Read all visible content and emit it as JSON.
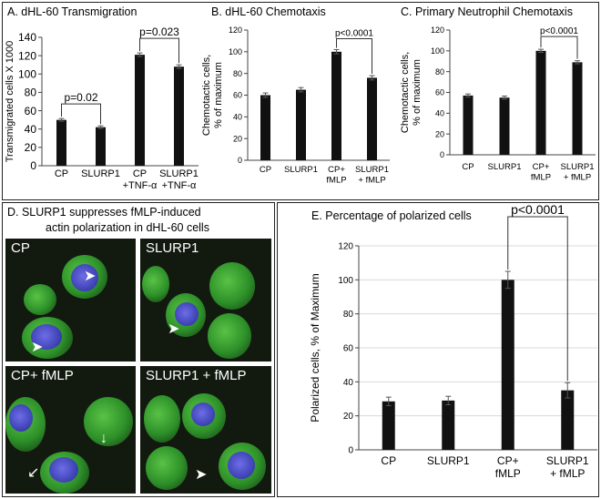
{
  "panel_a": {
    "title": "A. dHL-60 Transmigration",
    "chart_data": {
      "type": "bar",
      "ylabel": "Transmigrated cells X 1000",
      "ylim": [
        0,
        140
      ],
      "yticks": [
        "0",
        "20",
        "40",
        "60",
        "80",
        "100",
        "120",
        "140"
      ],
      "categories": [
        {
          "line1": "CP",
          "line2": ""
        },
        {
          "line1": "SLURP1",
          "line2": ""
        },
        {
          "line1": "CP",
          "line2": "+TNF-α"
        },
        {
          "line1": "SLURP1",
          "line2": "+TNF-α"
        }
      ],
      "values": [
        50,
        42,
        121,
        108
      ],
      "errors": [
        1.5,
        1.5,
        2,
        2
      ],
      "annotations": [
        {
          "from": 0,
          "to": 1,
          "text": "p=0.02"
        },
        {
          "from": 2,
          "to": 3,
          "text": "p=0.023"
        }
      ]
    }
  },
  "panel_b": {
    "title": "B.  dHL-60 Chemotaxis",
    "chart_data": {
      "type": "bar",
      "ylabel_line1": "Chemotactic  cells,",
      "ylabel_line2": "% of maximum",
      "ylim": [
        0,
        120
      ],
      "yticks": [
        "0",
        "20",
        "40",
        "60",
        "80",
        "100",
        "120"
      ],
      "categories": [
        {
          "line1": "CP",
          "line2": ""
        },
        {
          "line1": "SLURP1",
          "line2": ""
        },
        {
          "line1": "CP+",
          "line2": "fMLP"
        },
        {
          "line1": "SLURP1",
          "line2": "+ fMLP"
        }
      ],
      "values": [
        60,
        65,
        100,
        76
      ],
      "errors": [
        2,
        2,
        2,
        2
      ],
      "annotations": [
        {
          "from": 2,
          "to": 3,
          "text": "p<0.0001"
        }
      ]
    }
  },
  "panel_c": {
    "title": "C.  Primary Neutrophil Chemotaxis",
    "chart_data": {
      "type": "bar",
      "ylabel_line1": "Chemotactic  cells,",
      "ylabel_line2": "% of maximum",
      "ylim": [
        0,
        120
      ],
      "yticks": [
        "0",
        "20",
        "40",
        "60",
        "80",
        "100",
        "120"
      ],
      "categories": [
        {
          "line1": "CP",
          "line2": ""
        },
        {
          "line1": "SLURP1",
          "line2": ""
        },
        {
          "line1": "CP+",
          "line2": "fMLP"
        },
        {
          "line1": "SLURP1",
          "line2": "+ fMLP"
        }
      ],
      "values": [
        57,
        55,
        100,
        89
      ],
      "errors": [
        1.5,
        1.5,
        1.5,
        1.5
      ],
      "annotations": [
        {
          "from": 2,
          "to": 3,
          "text": "p<0.0001"
        }
      ]
    }
  },
  "panel_d": {
    "title_line1": "D. SLURP1 suppresses fMLP-induced",
    "title_line2": "actin polarization in dHL-60 cells",
    "images": [
      {
        "label": "CP"
      },
      {
        "label": "SLURP1"
      },
      {
        "label": "CP+ fMLP"
      },
      {
        "label": "SLURP1 + fMLP"
      }
    ]
  },
  "panel_e": {
    "title": "E.  Percentage of polarized cells",
    "chart_data": {
      "type": "bar",
      "ylabel": "Polarized cells,  % of Maximum",
      "ylim": [
        0,
        120
      ],
      "grid": true,
      "yticks": [
        "0",
        "20",
        "40",
        "60",
        "80",
        "100",
        "120"
      ],
      "categories": [
        {
          "line1": "CP",
          "line2": ""
        },
        {
          "line1": "SLURP1",
          "line2": ""
        },
        {
          "line1": "CP+",
          "line2": "fMLP"
        },
        {
          "line1": "SLURP1",
          "line2": "+ fMLP"
        }
      ],
      "values": [
        28.5,
        29,
        100,
        35
      ],
      "errors": [
        2.5,
        2.5,
        5,
        4.5
      ],
      "annotations": [
        {
          "from": 2,
          "to": 3,
          "text": "p<0.0001"
        }
      ]
    }
  }
}
